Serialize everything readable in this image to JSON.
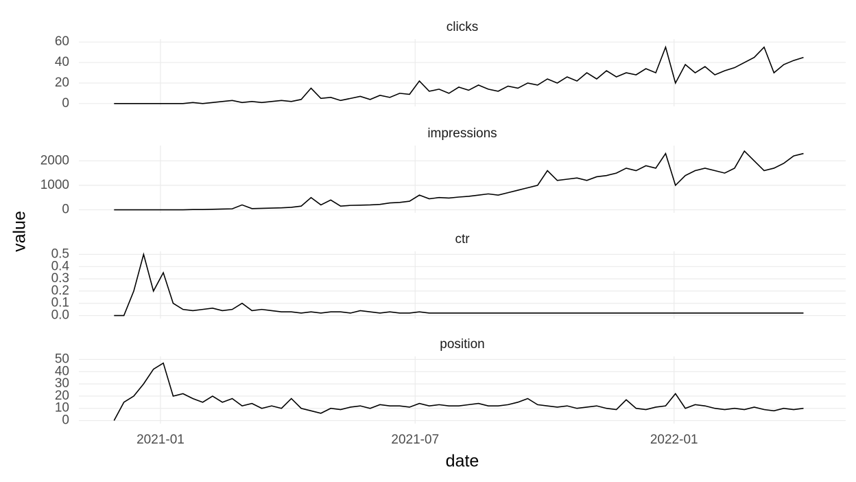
{
  "chart_data": {
    "type": "line",
    "x_label": "date",
    "y_label": "value",
    "color": "#000000",
    "grid": true,
    "xlim": [
      "2020-11-04",
      "2022-05-03"
    ],
    "xticks": [
      {
        "value": "2021-01-01",
        "label": "2021-01"
      },
      {
        "value": "2021-07-01",
        "label": "2021-07"
      },
      {
        "value": "2022-01-01",
        "label": "2022-01"
      }
    ],
    "x": [
      "2020-11-29",
      "2020-12-06",
      "2020-12-13",
      "2020-12-20",
      "2020-12-27",
      "2021-01-03",
      "2021-01-10",
      "2021-01-17",
      "2021-01-24",
      "2021-01-31",
      "2021-02-07",
      "2021-02-14",
      "2021-02-21",
      "2021-02-28",
      "2021-03-07",
      "2021-03-14",
      "2021-03-21",
      "2021-03-28",
      "2021-04-04",
      "2021-04-11",
      "2021-04-18",
      "2021-04-25",
      "2021-05-02",
      "2021-05-09",
      "2021-05-16",
      "2021-05-23",
      "2021-05-30",
      "2021-06-06",
      "2021-06-13",
      "2021-06-20",
      "2021-06-27",
      "2021-07-04",
      "2021-07-11",
      "2021-07-18",
      "2021-07-25",
      "2021-08-01",
      "2021-08-08",
      "2021-08-15",
      "2021-08-22",
      "2021-08-29",
      "2021-09-05",
      "2021-09-12",
      "2021-09-19",
      "2021-09-26",
      "2021-10-03",
      "2021-10-10",
      "2021-10-17",
      "2021-10-24",
      "2021-10-31",
      "2021-11-07",
      "2021-11-14",
      "2021-11-21",
      "2021-11-28",
      "2021-12-05",
      "2021-12-12",
      "2021-12-19",
      "2021-12-26",
      "2022-01-02",
      "2022-01-09",
      "2022-01-16",
      "2022-01-23",
      "2022-01-30",
      "2022-02-06",
      "2022-02-13",
      "2022-02-20",
      "2022-02-27",
      "2022-03-06",
      "2022-03-13",
      "2022-03-20",
      "2022-03-27",
      "2022-04-03"
    ],
    "panels": [
      {
        "title": "clicks",
        "ylim": [
          -2.8,
          62.8
        ],
        "yticks": [
          0,
          20,
          40,
          60
        ],
        "values": [
          0,
          0,
          0,
          0,
          0,
          0,
          0,
          0,
          1,
          0,
          1,
          2,
          3,
          1,
          2,
          1,
          2,
          3,
          2,
          4,
          15,
          5,
          6,
          3,
          5,
          7,
          4,
          8,
          6,
          10,
          9,
          22,
          12,
          14,
          10,
          16,
          13,
          18,
          14,
          12,
          17,
          15,
          20,
          18,
          24,
          20,
          26,
          22,
          30,
          24,
          32,
          26,
          30,
          28,
          34,
          30,
          55,
          20,
          38,
          30,
          36,
          28,
          32,
          35,
          40,
          45,
          55,
          30,
          38,
          42,
          45
        ]
      },
      {
        "title": "impressions",
        "ylim": [
          -125,
          2625
        ],
        "yticks": [
          0,
          1000,
          2000
        ],
        "values": [
          0,
          0,
          0,
          0,
          0,
          0,
          0,
          0,
          10,
          10,
          20,
          30,
          40,
          200,
          50,
          60,
          70,
          80,
          100,
          150,
          500,
          200,
          400,
          150,
          180,
          190,
          200,
          220,
          280,
          300,
          350,
          600,
          450,
          500,
          480,
          520,
          550,
          600,
          650,
          600,
          700,
          800,
          900,
          1000,
          1600,
          1200,
          1250,
          1300,
          1200,
          1350,
          1400,
          1500,
          1700,
          1600,
          1800,
          1700,
          2300,
          1000,
          1400,
          1600,
          1700,
          1600,
          1500,
          1700,
          2400,
          2000,
          1600,
          1700,
          1900,
          2200,
          2300
        ]
      },
      {
        "title": "ctr",
        "ylim": [
          -0.025,
          0.525
        ],
        "yticks": [
          {
            "value": 0,
            "label": "0.0"
          },
          0.1,
          0.2,
          0.3,
          0.4,
          0.5
        ],
        "values": [
          0,
          0,
          0.2,
          0.5,
          0.2,
          0.35,
          0.1,
          0.05,
          0.04,
          0.05,
          0.06,
          0.04,
          0.05,
          0.1,
          0.04,
          0.05,
          0.04,
          0.03,
          0.03,
          0.02,
          0.03,
          0.02,
          0.03,
          0.03,
          0.02,
          0.04,
          0.03,
          0.02,
          0.03,
          0.02,
          0.02,
          0.03,
          0.02,
          0.02,
          0.02,
          0.02,
          0.02,
          0.02,
          0.02,
          0.02,
          0.02,
          0.02,
          0.02,
          0.02,
          0.02,
          0.02,
          0.02,
          0.02,
          0.02,
          0.02,
          0.02,
          0.02,
          0.02,
          0.02,
          0.02,
          0.02,
          0.02,
          0.02,
          0.02,
          0.02,
          0.02,
          0.02,
          0.02,
          0.02,
          0.02,
          0.02,
          0.02,
          0.02,
          0.02,
          0.02,
          0.02
        ]
      },
      {
        "title": "position",
        "ylim": [
          -2.5,
          52.5
        ],
        "yticks": [
          0,
          10,
          20,
          30,
          40,
          50
        ],
        "values": [
          0,
          15,
          20,
          30,
          42,
          47,
          20,
          22,
          18,
          15,
          20,
          15,
          18,
          12,
          14,
          10,
          12,
          10,
          18,
          10,
          8,
          6,
          10,
          9,
          11,
          12,
          10,
          13,
          12,
          12,
          11,
          14,
          12,
          13,
          12,
          12,
          13,
          14,
          12,
          12,
          13,
          15,
          18,
          13,
          12,
          11,
          12,
          10,
          11,
          12,
          10,
          9,
          17,
          10,
          9,
          11,
          12,
          22,
          10,
          13,
          12,
          10,
          9,
          10,
          9,
          11,
          9,
          8,
          10,
          9,
          10
        ]
      }
    ]
  }
}
